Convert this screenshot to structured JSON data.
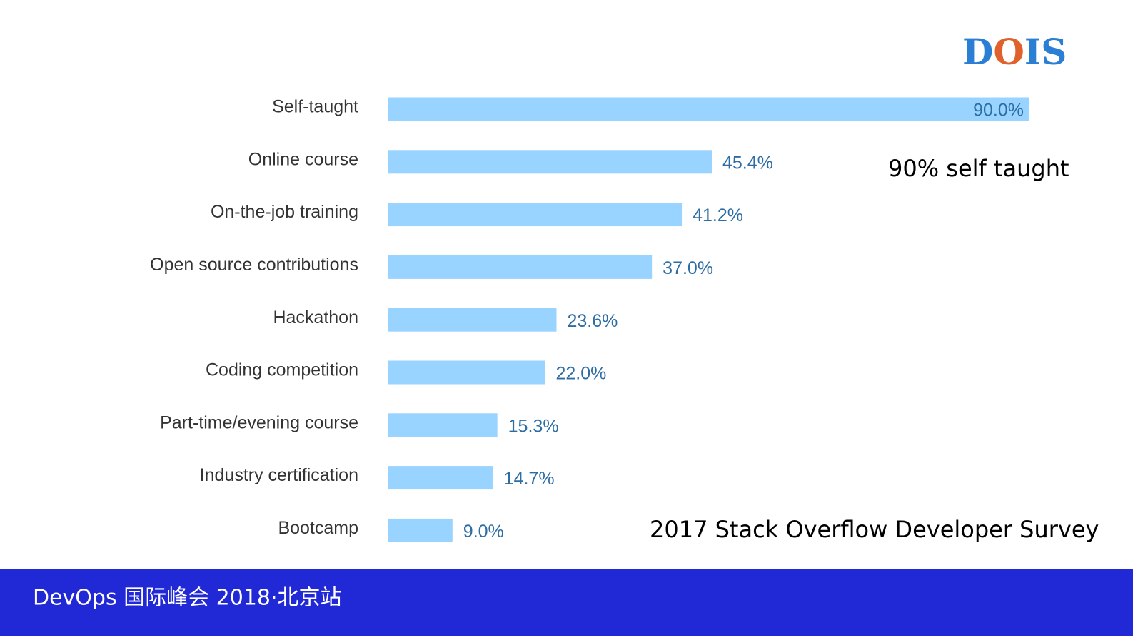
{
  "chart_data": {
    "type": "bar",
    "orientation": "horizontal",
    "categories": [
      "Self-taught",
      "Online course",
      "On-the-job training",
      "Open source contributions",
      "Hackathon",
      "Coding competition",
      "Part-time/evening course",
      "Industry certification",
      "Bootcamp"
    ],
    "values": [
      90,
      45.4,
      41.2,
      37,
      23.6,
      22,
      15.3,
      14.7,
      9
    ],
    "value_labels": [
      "90.0%",
      "45.4%",
      "41.2%",
      "37.0%",
      "23.6%",
      "22.0%",
      "15.3%",
      "14.7%",
      "9.0%"
    ],
    "color": "#99d3ff",
    "label_color": "#2e6da4",
    "annotations": [
      "90% self taught",
      "2017 Stack Overflow Developer Survey"
    ]
  },
  "logo": [
    "D",
    "O",
    "IS"
  ],
  "footer": "DevOps 国际峰会 2018·北京站"
}
